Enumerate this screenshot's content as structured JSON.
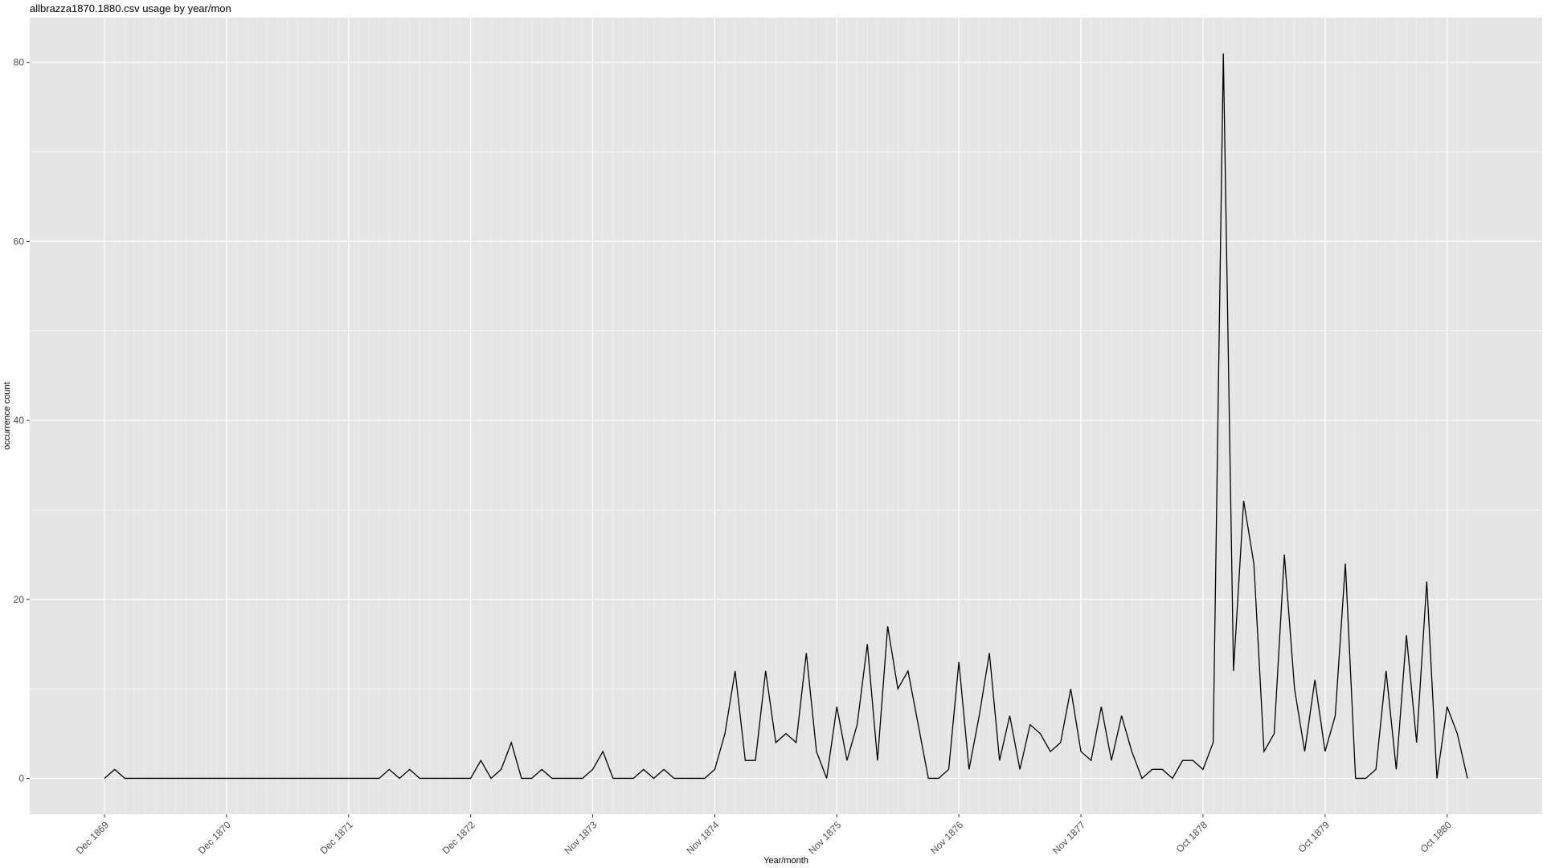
{
  "chart_data": {
    "type": "line",
    "title": "allbrazza1870.1880.csv usage by year/mon",
    "xlabel": "Year/month",
    "ylabel": "occurrence count",
    "x_ticks": [
      "Dec 1869",
      "Dec 1870",
      "Dec 1871",
      "Dec 1872",
      "Nov 1873",
      "Nov 1874",
      "Nov 1875",
      "Nov 1876",
      "Nov 1877",
      "Oct 1878",
      "Oct 1879",
      "Oct 1880"
    ],
    "y_ticks": [
      0,
      20,
      40,
      60,
      80
    ],
    "ylim": [
      -4,
      85
    ],
    "grid": true,
    "legend": "none",
    "line_color": "#000000",
    "panel_color": "#e5e5e5",
    "grid_color": "#ffffff",
    "x_start": "Dec 1869",
    "series": [
      {
        "values": [
          0,
          1,
          0,
          0,
          0,
          0,
          0,
          0,
          0,
          0,
          0,
          0,
          0,
          0,
          0,
          0,
          0,
          0,
          0,
          0,
          0,
          0,
          0,
          0,
          0,
          0,
          0,
          0,
          1,
          0,
          1,
          0,
          0,
          0,
          0,
          0,
          0,
          2,
          0,
          1,
          4,
          0,
          0,
          1,
          0,
          0,
          0,
          0,
          1,
          3,
          0,
          0,
          0,
          1,
          0,
          1,
          0,
          0,
          0,
          0,
          1,
          5,
          12,
          2,
          2,
          12,
          4,
          5,
          4,
          14,
          3,
          0,
          8,
          2,
          6,
          15,
          2,
          17,
          10,
          12,
          6,
          0,
          0,
          1,
          13,
          1,
          7,
          14,
          2,
          7,
          1,
          6,
          5,
          3,
          4,
          10,
          3,
          2,
          8,
          2,
          7,
          3,
          0,
          1,
          1,
          0,
          2,
          2,
          1,
          4,
          81,
          12,
          31,
          24,
          3,
          5,
          25,
          10,
          3,
          11,
          3,
          7,
          24,
          0,
          0,
          1,
          12,
          1,
          16,
          4,
          22,
          0,
          8,
          5,
          0
        ]
      }
    ]
  }
}
